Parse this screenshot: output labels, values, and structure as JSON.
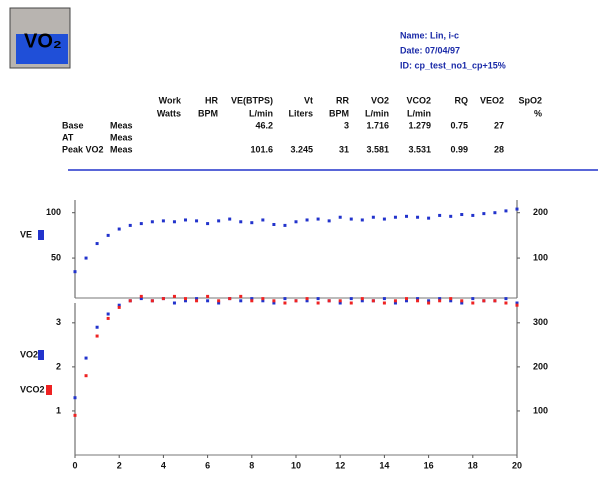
{
  "logo": "VO₂",
  "info": {
    "name": "Name: Lin, i-c",
    "date": "Date: 07/04/97",
    "id": "ID: cp_test_no1_cp+15%"
  },
  "table": {
    "columns": [
      [
        "Work",
        "Watts"
      ],
      [
        "HR",
        "BPM"
      ],
      [
        "VE(BTPS)",
        "L/min"
      ],
      [
        "Vt",
        "Liters"
      ],
      [
        "RR",
        "BPM"
      ],
      [
        "VO2",
        "L/min"
      ],
      [
        "VCO2",
        "L/min"
      ],
      [
        "RQ"
      ],
      [
        "VEO2"
      ],
      [
        "SpO2",
        "%"
      ]
    ],
    "rows": [
      {
        "label": "Base",
        "kind": "Meas",
        "cells": [
          null,
          null,
          46.2,
          null,
          3,
          1.716,
          1.279,
          0.75,
          27,
          null
        ]
      },
      {
        "label": "AT",
        "kind": "Meas",
        "cells": [
          null,
          null,
          null,
          null,
          null,
          null,
          null,
          null,
          null,
          null
        ]
      },
      {
        "label": "Peak VO2",
        "kind": "Meas",
        "cells": [
          null,
          null,
          101.6,
          3.245,
          31,
          3.581,
          3.531,
          0.99,
          28,
          null
        ]
      }
    ]
  },
  "chart_data": [
    {
      "type": "scatter",
      "x": [
        0,
        0.5,
        1,
        1.5,
        2,
        2.5,
        3,
        3.5,
        4,
        4.5,
        5,
        5.5,
        6,
        6.5,
        7,
        7.5,
        8,
        8.5,
        9,
        9.5,
        10,
        10.5,
        11,
        11.5,
        12,
        12.5,
        13,
        13.5,
        14,
        14.5,
        15,
        15.5,
        16,
        16.5,
        17,
        17.5,
        18,
        18.5,
        19,
        19.5,
        20
      ],
      "series": [
        {
          "name": "VE",
          "color": "#2233cc",
          "values": [
            35,
            50,
            66,
            75,
            82,
            86,
            88,
            90,
            91,
            90,
            92,
            91,
            88,
            91,
            93,
            90,
            89,
            92,
            87,
            86,
            90,
            92,
            93,
            91,
            95,
            93,
            92,
            95,
            93,
            95,
            96,
            95,
            94,
            97,
            96,
            98,
            97,
            99,
            100,
            102,
            104
          ]
        }
      ],
      "xlim": [
        0,
        20
      ],
      "ylim": [
        6,
        114
      ],
      "yticks": [
        50,
        100
      ],
      "y2lim": [
        12,
        228
      ],
      "y2ticks": [
        100,
        200
      ]
    },
    {
      "type": "scatter",
      "x": [
        0,
        0.5,
        1,
        1.5,
        2,
        2.5,
        3,
        3.5,
        4,
        4.5,
        5,
        5.5,
        6,
        6.5,
        7,
        7.5,
        8,
        8.5,
        9,
        9.5,
        10,
        10.5,
        11,
        11.5,
        12,
        12.5,
        13,
        13.5,
        14,
        14.5,
        15,
        15.5,
        16,
        16.5,
        17,
        17.5,
        18,
        18.5,
        19,
        19.5,
        20
      ],
      "series": [
        {
          "name": "VO2",
          "color": "#2233cc",
          "values": [
            1.3,
            2.2,
            2.9,
            3.2,
            3.4,
            3.5,
            3.55,
            3.5,
            3.55,
            3.45,
            3.5,
            3.55,
            3.5,
            3.45,
            3.55,
            3.5,
            3.55,
            3.5,
            3.45,
            3.55,
            3.5,
            3.5,
            3.55,
            3.5,
            3.45,
            3.55,
            3.5,
            3.5,
            3.55,
            3.45,
            3.5,
            3.55,
            3.5,
            3.55,
            3.5,
            3.45,
            3.55,
            3.5,
            3.5,
            3.55,
            3.45
          ]
        },
        {
          "name": "VCO2",
          "color": "#ee2222",
          "values": [
            0.9,
            1.8,
            2.7,
            3.1,
            3.35,
            3.5,
            3.6,
            3.5,
            3.55,
            3.6,
            3.55,
            3.5,
            3.6,
            3.5,
            3.55,
            3.6,
            3.5,
            3.55,
            3.5,
            3.45,
            3.5,
            3.55,
            3.45,
            3.5,
            3.5,
            3.45,
            3.55,
            3.5,
            3.45,
            3.5,
            3.55,
            3.5,
            3.45,
            3.5,
            3.55,
            3.5,
            3.45,
            3.5,
            3.5,
            3.45,
            3.4
          ]
        }
      ],
      "xlim": [
        0,
        20
      ],
      "ylim": [
        0,
        3.45
      ],
      "yticks": [
        1,
        2,
        3
      ],
      "y2lim": [
        0,
        345
      ],
      "y2ticks": [
        100,
        200,
        300
      ],
      "xticks": [
        0,
        2,
        4,
        6,
        8,
        10,
        12,
        14,
        16,
        18,
        20
      ]
    }
  ]
}
